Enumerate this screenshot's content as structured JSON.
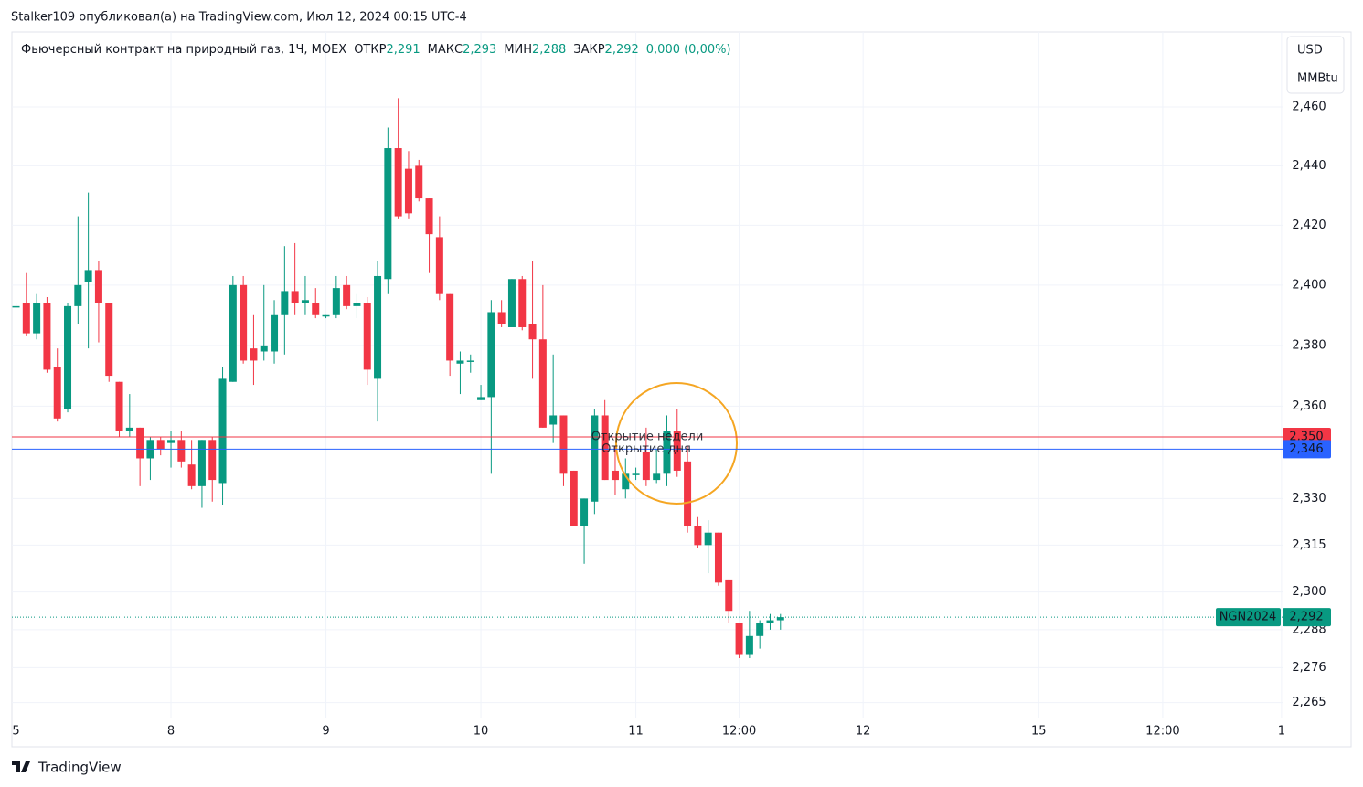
{
  "top_note": "Stalker109 опубликовал(а) на TradingView.com, Июл 12, 2024 00:15 UTC-4",
  "footer": "TradingView",
  "chart_data": {
    "type": "candlestick",
    "title": "Фьючерсный контракт на природный газ, 1Ч, MOEX",
    "header": [
      {
        "label": "ОТКР",
        "value": "2,291"
      },
      {
        "label": "МАКС",
        "value": "2,293"
      },
      {
        "label": "МИН",
        "value": "2,288"
      },
      {
        "label": "ЗАКР",
        "value": "2,292"
      }
    ],
    "change": "0,000 (0,00%)",
    "currency": "USD",
    "unit": "MMBtu",
    "up_color": "#089981",
    "down_color": "#f23645",
    "log_scale": true,
    "grid": true,
    "open": [
      2.393,
      2.394,
      2.384,
      2.394,
      2.373,
      2.359,
      2.393,
      2.401,
      2.405,
      2.394,
      2.368,
      2.352,
      2.353,
      2.343,
      2.349,
      2.348,
      2.349,
      2.341,
      2.334,
      2.349,
      2.335,
      2.368,
      2.4,
      2.379,
      2.378,
      2.378,
      2.39,
      2.398,
      2.394,
      2.394,
      2.39,
      2.39,
      2.4,
      2.393,
      2.394,
      2.369,
      2.402,
      2.446,
      2.439,
      2.44,
      2.429,
      2.416,
      2.397,
      2.374,
      2.375,
      2.362,
      2.363,
      2.391,
      2.386,
      2.402,
      2.387,
      2.382,
      2.354,
      2.357,
      2.339,
      2.321,
      2.329,
      2.357,
      2.339,
      2.333,
      2.338,
      2.345,
      2.336,
      2.338,
      2.352,
      2.342,
      2.321,
      2.315,
      2.319,
      2.304,
      2.29,
      2.28,
      2.286,
      2.29,
      2.291
    ],
    "high": [
      2.394,
      2.404,
      2.397,
      2.396,
      2.379,
      2.394,
      2.423,
      2.431,
      2.408,
      2.394,
      2.368,
      2.364,
      2.353,
      2.35,
      2.35,
      2.352,
      2.352,
      2.349,
      2.349,
      2.35,
      2.373,
      2.403,
      2.403,
      2.39,
      2.4,
      2.395,
      2.413,
      2.414,
      2.403,
      2.399,
      2.39,
      2.403,
      2.403,
      2.397,
      2.396,
      2.408,
      2.453,
      2.463,
      2.445,
      2.442,
      2.429,
      2.423,
      2.397,
      2.378,
      2.377,
      2.367,
      2.395,
      2.395,
      2.402,
      2.403,
      2.408,
      2.4,
      2.377,
      2.357,
      2.339,
      2.33,
      2.359,
      2.362,
      2.347,
      2.343,
      2.34,
      2.353,
      2.346,
      2.357,
      2.359,
      2.347,
      2.324,
      2.323,
      2.319,
      2.304,
      2.29,
      2.294,
      2.291,
      2.293,
      2.293
    ],
    "low": [
      2.393,
      2.383,
      2.382,
      2.371,
      2.355,
      2.358,
      2.387,
      2.379,
      2.381,
      2.368,
      2.35,
      2.35,
      2.334,
      2.336,
      2.344,
      2.34,
      2.34,
      2.333,
      2.327,
      2.329,
      2.328,
      2.368,
      2.374,
      2.367,
      2.375,
      2.374,
      2.377,
      2.39,
      2.39,
      2.389,
      2.389,
      2.389,
      2.392,
      2.389,
      2.367,
      2.355,
      2.397,
      2.422,
      2.422,
      2.428,
      2.404,
      2.395,
      2.37,
      2.364,
      2.371,
      2.362,
      2.338,
      2.386,
      2.386,
      2.385,
      2.369,
      2.353,
      2.348,
      2.334,
      2.321,
      2.309,
      2.325,
      2.336,
      2.331,
      2.33,
      2.336,
      2.334,
      2.335,
      2.334,
      2.337,
      2.319,
      2.314,
      2.306,
      2.302,
      2.29,
      2.279,
      2.279,
      2.282,
      2.288,
      2.288
    ],
    "close": [
      2.393,
      2.384,
      2.394,
      2.372,
      2.356,
      2.393,
      2.4,
      2.405,
      2.394,
      2.37,
      2.352,
      2.353,
      2.343,
      2.349,
      2.346,
      2.349,
      2.342,
      2.334,
      2.349,
      2.336,
      2.369,
      2.4,
      2.375,
      2.375,
      2.38,
      2.39,
      2.398,
      2.394,
      2.395,
      2.39,
      2.39,
      2.399,
      2.393,
      2.394,
      2.372,
      2.403,
      2.446,
      2.423,
      2.424,
      2.429,
      2.417,
      2.397,
      2.375,
      2.375,
      2.375,
      2.363,
      2.391,
      2.387,
      2.402,
      2.386,
      2.382,
      2.353,
      2.357,
      2.338,
      2.321,
      2.33,
      2.357,
      2.336,
      2.336,
      2.338,
      2.338,
      2.336,
      2.338,
      2.352,
      2.339,
      2.321,
      2.315,
      2.319,
      2.303,
      2.294,
      2.28,
      2.286,
      2.29,
      2.291,
      2.292
    ],
    "ylim": [
      2.2603,
      2.4857
    ],
    "yticks": [
      {
        "value": 2.46,
        "label": "2,460"
      },
      {
        "value": 2.44,
        "label": "2,440"
      },
      {
        "value": 2.42,
        "label": "2,420"
      },
      {
        "value": 2.4,
        "label": "2,400"
      },
      {
        "value": 2.38,
        "label": "2,380"
      },
      {
        "value": 2.36,
        "label": "2,360"
      },
      {
        "value": 2.33,
        "label": "2,330"
      },
      {
        "value": 2.315,
        "label": "2,315"
      },
      {
        "value": 2.3,
        "label": "2,300"
      },
      {
        "value": 2.288,
        "label": "2,288"
      },
      {
        "value": 2.276,
        "label": "2,276"
      },
      {
        "value": 2.265,
        "label": "2,265"
      }
    ],
    "xlim": [
      -0.4,
      122.6
    ],
    "xticks": [
      {
        "value": 0,
        "label": "5"
      },
      {
        "value": 15,
        "label": "8"
      },
      {
        "value": 30,
        "label": "9"
      },
      {
        "value": 45,
        "label": "10"
      },
      {
        "value": 60,
        "label": "11"
      },
      {
        "value": 70,
        "label": "12:00"
      },
      {
        "value": 82,
        "label": "12"
      },
      {
        "value": 99,
        "label": "15"
      },
      {
        "value": 111,
        "label": "12:00"
      },
      {
        "value": 122.5,
        "label": "1"
      }
    ],
    "price_lines": [
      {
        "name": "Открытие недели",
        "value": 2.35,
        "label": "2,350",
        "color": "#f23645"
      },
      {
        "name": "Открытие дня",
        "value": 2.346,
        "label": "2,346",
        "color": "#2962ff"
      }
    ],
    "last_price": {
      "name": "NGN2024",
      "value": 2.292,
      "label": "2,292",
      "color": "#089981"
    }
  }
}
